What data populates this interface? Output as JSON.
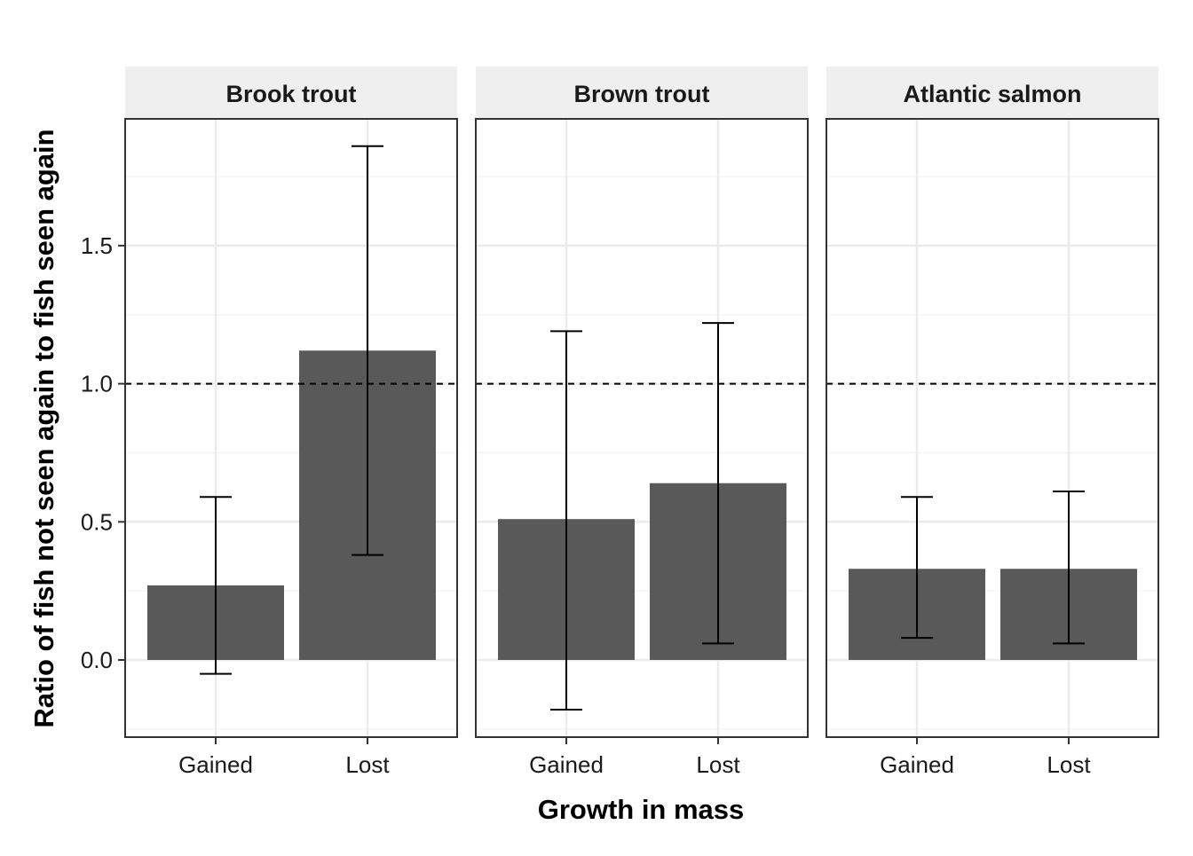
{
  "chart_data": {
    "type": "bar",
    "xlabel": "Growth in mass",
    "ylabel": "Ratio of fish not seen again to fish seen again",
    "ylim": [
      -0.28,
      1.96
    ],
    "yticks": [
      0.0,
      0.5,
      1.0,
      1.5
    ],
    "ytick_labels": [
      "0.0",
      "0.5",
      "1.0",
      "1.5"
    ],
    "categories": [
      "Gained",
      "Lost"
    ],
    "reference_line": 1.0,
    "grid": true,
    "bar_color": "#595959",
    "facets": [
      {
        "title": "Brook trout",
        "values": [
          0.27,
          1.12
        ],
        "error_low": [
          -0.05,
          0.38
        ],
        "error_high": [
          0.59,
          1.86
        ]
      },
      {
        "title": "Brown trout",
        "values": [
          0.51,
          0.64
        ],
        "error_low": [
          -0.18,
          0.06
        ],
        "error_high": [
          1.19,
          1.22
        ]
      },
      {
        "title": "Atlantic salmon",
        "values": [
          0.33,
          0.33
        ],
        "error_low": [
          0.08,
          0.06
        ],
        "error_high": [
          0.59,
          0.61
        ]
      }
    ]
  }
}
